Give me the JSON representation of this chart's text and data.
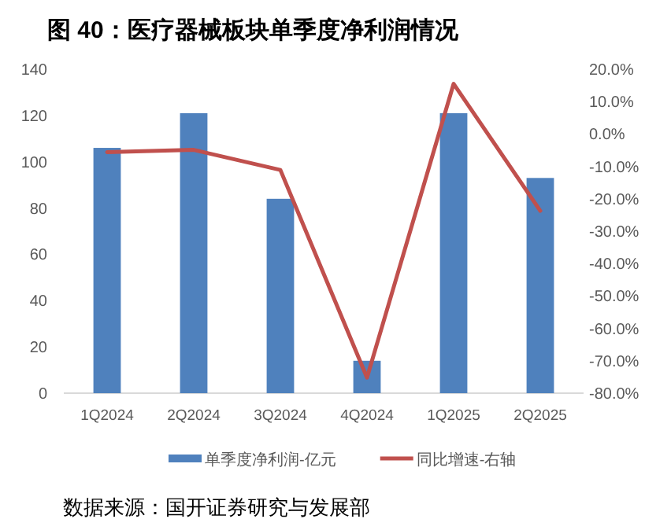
{
  "chart_data": {
    "type": "bar",
    "title": "图 40：医疗器械板块单季度净利润情况",
    "categories": [
      "1Q2024",
      "2Q2024",
      "3Q2024",
      "4Q2024",
      "1Q2025",
      "2Q2025"
    ],
    "series": [
      {
        "name": "单季度净利润-亿元",
        "color": "#4f81bd",
        "values": [
          106,
          121,
          84,
          14,
          121,
          93
        ]
      },
      {
        "name": "同比增速-右轴",
        "type": "line",
        "axis": "y2",
        "color": "#c0504d",
        "values": [
          -5.6,
          -4.9,
          -11.1,
          -75.2,
          15.5,
          -23.7
        ]
      }
    ],
    "ylim": [
      0,
      140
    ],
    "yticks": [
      0,
      20,
      40,
      60,
      80,
      100,
      120,
      140
    ],
    "y2lim": [
      -80,
      20
    ],
    "y2ticks": [
      {
        "value": -80,
        "label": "-80.0%"
      },
      {
        "value": -70,
        "label": "-70.0%"
      },
      {
        "value": -60,
        "label": "-60.0%"
      },
      {
        "value": -50,
        "label": "-50.0%"
      },
      {
        "value": -40,
        "label": "-40.0%"
      },
      {
        "value": -30,
        "label": "-30.0%"
      },
      {
        "value": -20,
        "label": "-20.0%"
      },
      {
        "value": -10,
        "label": "-10.0%"
      },
      {
        "value": 0,
        "label": "0.0%"
      },
      {
        "value": 10,
        "label": "10.0%"
      },
      {
        "value": 20,
        "label": "20.0%"
      }
    ],
    "legend": "bottom",
    "annotations": [
      "数据来源：国开证券研究与发展部"
    ]
  }
}
